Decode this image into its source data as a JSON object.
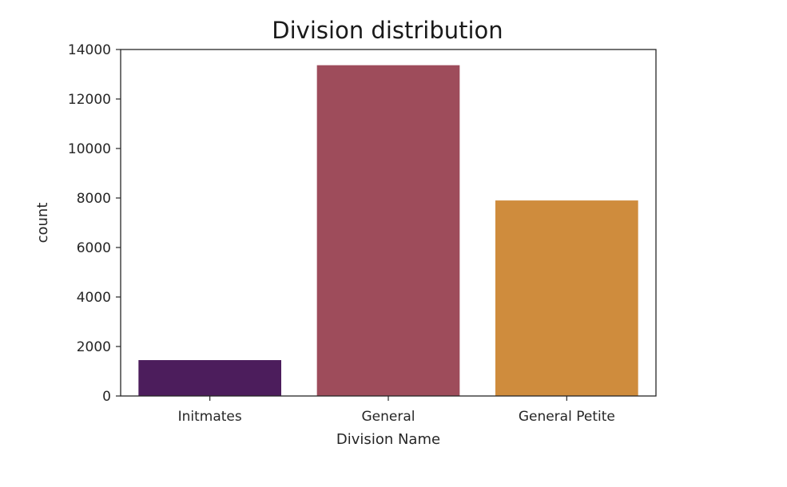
{
  "chart_data": {
    "type": "bar",
    "title": "Division distribution",
    "xlabel": "Division Name",
    "ylabel": "count",
    "categories": [
      "Initmates",
      "General",
      "General Petite"
    ],
    "values": [
      1450,
      13365,
      7900
    ],
    "bar_colors": [
      "#4c1d5c",
      "#9e4c5b",
      "#cf8c3d"
    ],
    "ylim": [
      0,
      14000
    ],
    "yticks": [
      0,
      2000,
      4000,
      6000,
      8000,
      10000,
      12000,
      14000
    ],
    "ytick_labels": [
      "0",
      "2000",
      "4000",
      "6000",
      "8000",
      "10000",
      "12000",
      "14000"
    ],
    "grid": false,
    "legend": "none"
  }
}
